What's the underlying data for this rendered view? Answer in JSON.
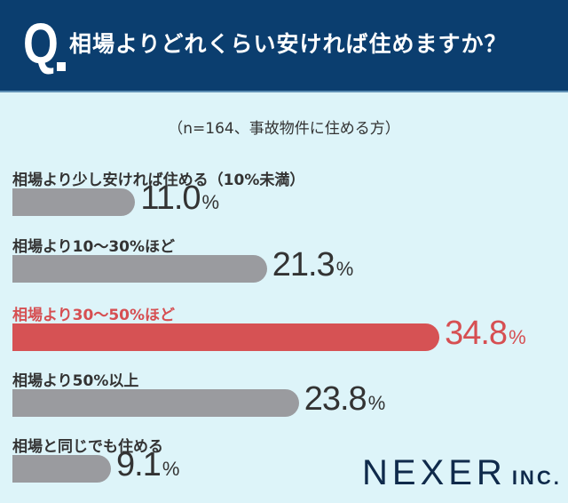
{
  "header": {
    "q": "Q",
    "title": "相場よりどれくらい安ければ住めますか？"
  },
  "subtitle": "（n=164、事故物件に住める方）",
  "colors": {
    "header": "#0b3e6f",
    "highlight": "#d65254",
    "bar": "#9a9b9f",
    "background": "#ddf4f9"
  },
  "chart_data": {
    "type": "bar",
    "orientation": "horizontal",
    "title": "相場よりどれくらい安ければ住めますか？",
    "categories": [
      "相場より少し安ければ住める（10%未満）",
      "相場より10〜30%ほど",
      "相場より30〜50%ほど",
      "相場より50%以上",
      "相場と同じでも住める"
    ],
    "values": [
      11.0,
      21.3,
      34.8,
      23.8,
      9.1
    ],
    "value_labels": [
      "11.0",
      "21.3",
      "34.8",
      "23.8",
      "9.1"
    ],
    "unit": "%",
    "highlight_index": 2
  },
  "logo": {
    "name": "NEXER",
    "suffix": "INC."
  }
}
